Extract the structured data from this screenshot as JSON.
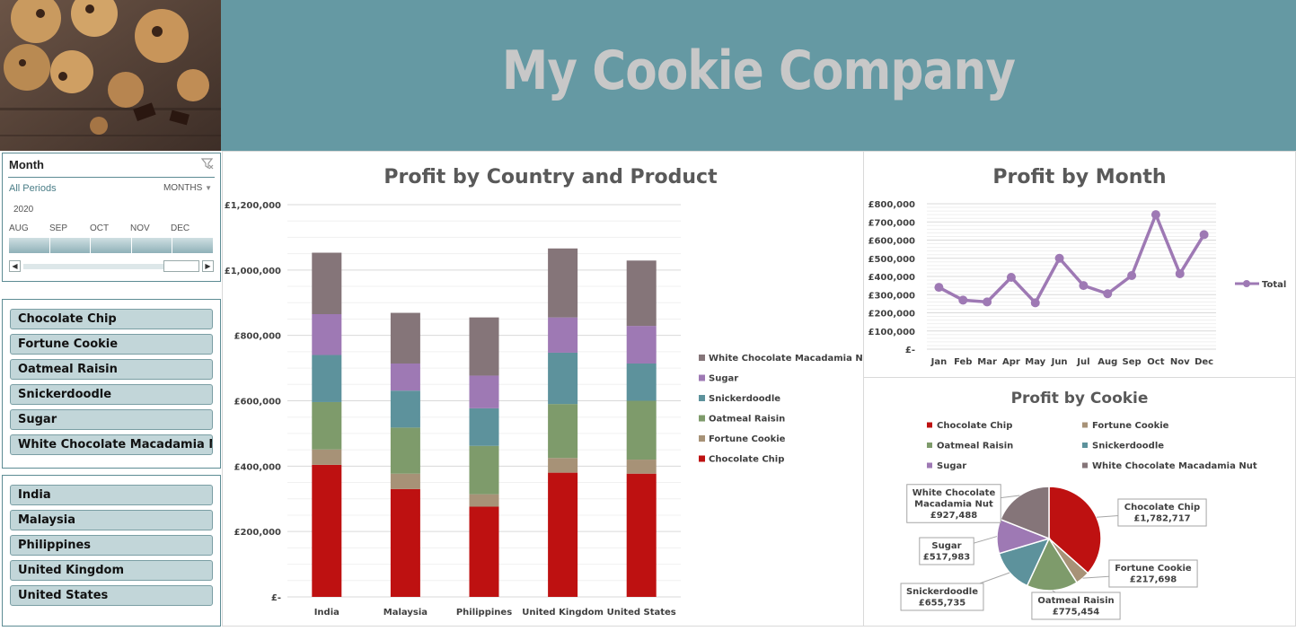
{
  "header": {
    "title": "My Cookie Company"
  },
  "timeline_slicer": {
    "title": "Month",
    "periods_label": "All Periods",
    "level_label": "MONTHS",
    "year": "2020",
    "months": [
      "AUG",
      "SEP",
      "OCT",
      "NOV",
      "DEC"
    ],
    "icons": {
      "filter": "clear-filter-icon",
      "dropdown": "chevron-down-icon",
      "scroll_left": "chevron-left-icon",
      "scroll_right": "chevron-right-icon"
    }
  },
  "product_slicer": {
    "items": [
      "Chocolate Chip",
      "Fortune Cookie",
      "Oatmeal Raisin",
      "Snickerdoodle",
      "Sugar",
      "White Chocolate Macadamia Nut"
    ]
  },
  "country_slicer": {
    "items": [
      "India",
      "Malaysia",
      "Philippines",
      "United Kingdom",
      "United States"
    ]
  },
  "colors": {
    "banner": "#6599a3",
    "Chocolate Chip": "#be1111",
    "Fortune Cookie": "#a79277",
    "Oatmeal Raisin": "#7e9b6b",
    "Snickerdoodle": "#5d929c",
    "Sugar": "#9e79b4",
    "White Chocolate Macadamia Nut": "#857579",
    "line": "#9e79b4"
  },
  "chart_data": [
    {
      "id": "country",
      "type": "bar",
      "stacked": true,
      "title": "Profit by Country and Product",
      "categories": [
        "India",
        "Malaysia",
        "Philippines",
        "United Kingdom",
        "United States"
      ],
      "ylim": [
        0,
        1200000
      ],
      "yticks": [
        0,
        200000,
        400000,
        600000,
        800000,
        1000000,
        1200000
      ],
      "ytick_labels": [
        "£-",
        "£200,000",
        "£400,000",
        "£600,000",
        "£800,000",
        "£1,000,000",
        "£1,200,000"
      ],
      "grid": true,
      "legend_position": "right",
      "series": [
        {
          "name": "Chocolate Chip",
          "values": [
            404000,
            330000,
            276000,
            380000,
            377000
          ]
        },
        {
          "name": "Fortune Cookie",
          "values": [
            47000,
            47000,
            38000,
            45000,
            43000
          ]
        },
        {
          "name": "Oatmeal Raisin",
          "values": [
            145000,
            141000,
            148000,
            165000,
            180000
          ]
        },
        {
          "name": "Snickerdoodle",
          "values": [
            144000,
            113000,
            115000,
            157000,
            114000
          ]
        },
        {
          "name": "Sugar",
          "values": [
            125000,
            83000,
            100000,
            108000,
            115000
          ]
        },
        {
          "name": "White Chocolate Macadamia Nut",
          "values": [
            188000,
            155000,
            178000,
            211000,
            200000
          ]
        }
      ]
    },
    {
      "id": "month",
      "type": "line",
      "title": "Profit by Month",
      "categories": [
        "Jan",
        "Feb",
        "Mar",
        "Apr",
        "May",
        "Jun",
        "Jul",
        "Aug",
        "Sep",
        "Oct",
        "Nov",
        "Dec"
      ],
      "ylim": [
        0,
        800000
      ],
      "yticks": [
        0,
        100000,
        200000,
        300000,
        400000,
        500000,
        600000,
        700000,
        800000
      ],
      "ytick_labels": [
        "£-",
        "£100,000",
        "£200,000",
        "£300,000",
        "£400,000",
        "£500,000",
        "£600,000",
        "£700,000",
        "£800,000"
      ],
      "grid": true,
      "legend_position": "right",
      "series": [
        {
          "name": "Total",
          "values": [
            340000,
            270000,
            260000,
            395000,
            255000,
            500000,
            350000,
            305000,
            405000,
            740000,
            415000,
            630000
          ]
        }
      ]
    },
    {
      "id": "cookie",
      "type": "pie",
      "title": "Profit by Cookie",
      "legend_position": "top",
      "slices": [
        {
          "name": "Chocolate Chip",
          "value": 1782717,
          "label": "£1,782,717"
        },
        {
          "name": "Fortune Cookie",
          "value": 217698,
          "label": "£217,698"
        },
        {
          "name": "Oatmeal Raisin",
          "value": 775454,
          "label": "£775,454"
        },
        {
          "name": "Snickerdoodle",
          "value": 655735,
          "label": "£655,735"
        },
        {
          "name": "Sugar",
          "value": 517983,
          "label": "£517,983"
        },
        {
          "name": "White Chocolate Macadamia Nut",
          "value": 927488,
          "label": "£927,488"
        }
      ]
    }
  ]
}
